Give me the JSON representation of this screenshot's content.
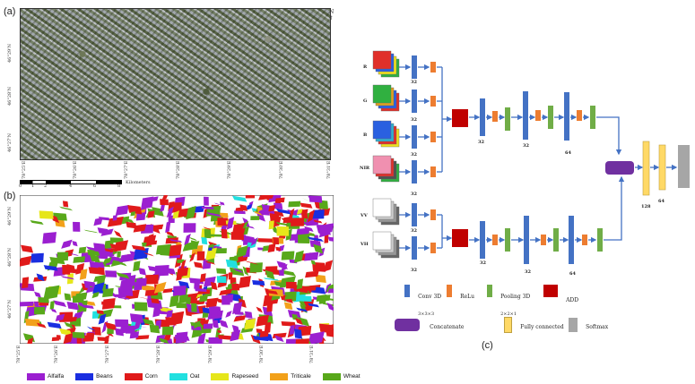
{
  "panels": {
    "a": "(a)",
    "b": "(b)",
    "c": "(c)"
  },
  "map_a": {
    "y_ticks": [
      "46°29'N",
      "46°28'N",
      "46°27'N"
    ],
    "x_ticks": [
      "78°25'E",
      "78°26'E",
      "78°27'E",
      "78°28'E",
      "78°29'E",
      "78°30'E",
      "78°31'E"
    ],
    "scalebar": {
      "ticks": [
        "0",
        "1",
        "2",
        "4",
        "6",
        "8"
      ],
      "unit": "Kilometers"
    }
  },
  "map_b": {
    "y_ticks": [
      "46°29'N",
      "46°28'N",
      "46°27'N"
    ],
    "x_ticks": [
      "78°25'E",
      "78°26'E",
      "78°27'E",
      "78°28'E",
      "78°29'E",
      "78°30'E",
      "78°31'E"
    ]
  },
  "legend": [
    {
      "label": "Alfalfa",
      "color": "#9b1fd0"
    },
    {
      "label": "Beans",
      "color": "#1a2ee0"
    },
    {
      "label": "Corn",
      "color": "#e01a1a"
    },
    {
      "label": "Oat",
      "color": "#22e0e0"
    },
    {
      "label": "Rapeseed",
      "color": "#e6e61a"
    },
    {
      "label": "Triticale",
      "color": "#f2a11a"
    },
    {
      "label": "Wheat",
      "color": "#58a81a"
    }
  ],
  "network": {
    "inputs_top": [
      "R",
      "G",
      "B",
      "NIR"
    ],
    "inputs_bottom": [
      "VV",
      "VH"
    ],
    "top_branch_sizes": [
      "32",
      "32",
      "32",
      "32"
    ],
    "bottom_branch_sizes": [
      "32",
      "32"
    ],
    "top_path_sizes": [
      "32",
      "32",
      "64"
    ],
    "bottom_path_sizes": [
      "32",
      "32",
      "64"
    ],
    "fc_sizes": [
      "128",
      "64"
    ],
    "legend": {
      "conv": "Conv 3D",
      "conv_sub": "3×3×3",
      "relu": "ReLu",
      "pool": "Pooling 3D",
      "pool_sub": "2×2×1",
      "add": "ADD",
      "concat": "Concatenate",
      "fc": "Fully connected",
      "softmax": "Softmax"
    },
    "colors": {
      "conv": "#4472c4",
      "relu": "#ed7d31",
      "pool": "#70ad47",
      "add": "#c00000",
      "concat": "#7030a0",
      "fc": "#ffd966",
      "softmax": "#a6a6a6"
    }
  }
}
